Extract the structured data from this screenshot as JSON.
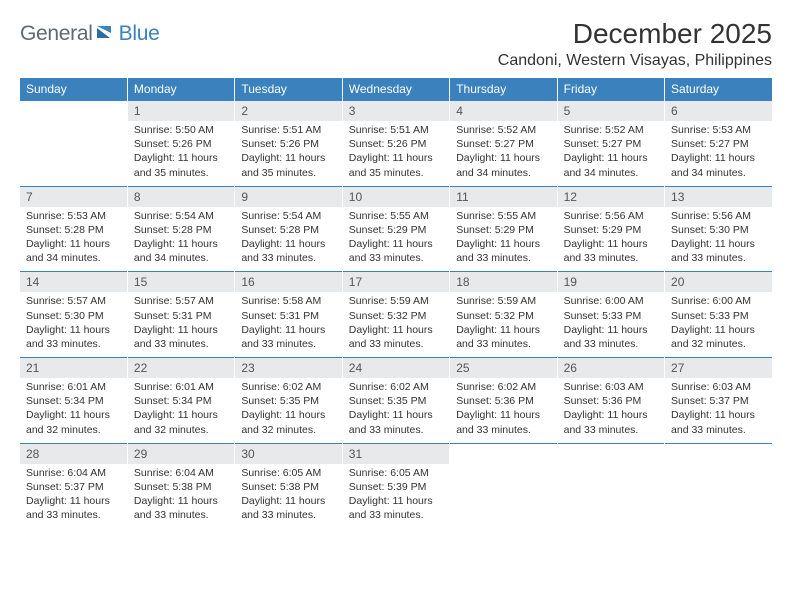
{
  "logo": {
    "general": "General",
    "blue": "Blue"
  },
  "title": "December 2025",
  "location": "Candoni, Western Visayas, Philippines",
  "colors": {
    "header_bg": "#3a81bd",
    "header_text": "#ffffff",
    "daynum_bg": "#e8e9ea",
    "daynum_text": "#555555",
    "body_text": "#333333",
    "rule": "#3a81bd",
    "logo_gray": "#5f6a72",
    "logo_blue": "#3a81bd"
  },
  "daysOfWeek": [
    "Sunday",
    "Monday",
    "Tuesday",
    "Wednesday",
    "Thursday",
    "Friday",
    "Saturday"
  ],
  "weeks": [
    [
      null,
      {
        "n": "1",
        "sr": "5:50 AM",
        "ss": "5:26 PM",
        "dl": "11 hours and 35 minutes."
      },
      {
        "n": "2",
        "sr": "5:51 AM",
        "ss": "5:26 PM",
        "dl": "11 hours and 35 minutes."
      },
      {
        "n": "3",
        "sr": "5:51 AM",
        "ss": "5:26 PM",
        "dl": "11 hours and 35 minutes."
      },
      {
        "n": "4",
        "sr": "5:52 AM",
        "ss": "5:27 PM",
        "dl": "11 hours and 34 minutes."
      },
      {
        "n": "5",
        "sr": "5:52 AM",
        "ss": "5:27 PM",
        "dl": "11 hours and 34 minutes."
      },
      {
        "n": "6",
        "sr": "5:53 AM",
        "ss": "5:27 PM",
        "dl": "11 hours and 34 minutes."
      }
    ],
    [
      {
        "n": "7",
        "sr": "5:53 AM",
        "ss": "5:28 PM",
        "dl": "11 hours and 34 minutes."
      },
      {
        "n": "8",
        "sr": "5:54 AM",
        "ss": "5:28 PM",
        "dl": "11 hours and 34 minutes."
      },
      {
        "n": "9",
        "sr": "5:54 AM",
        "ss": "5:28 PM",
        "dl": "11 hours and 33 minutes."
      },
      {
        "n": "10",
        "sr": "5:55 AM",
        "ss": "5:29 PM",
        "dl": "11 hours and 33 minutes."
      },
      {
        "n": "11",
        "sr": "5:55 AM",
        "ss": "5:29 PM",
        "dl": "11 hours and 33 minutes."
      },
      {
        "n": "12",
        "sr": "5:56 AM",
        "ss": "5:29 PM",
        "dl": "11 hours and 33 minutes."
      },
      {
        "n": "13",
        "sr": "5:56 AM",
        "ss": "5:30 PM",
        "dl": "11 hours and 33 minutes."
      }
    ],
    [
      {
        "n": "14",
        "sr": "5:57 AM",
        "ss": "5:30 PM",
        "dl": "11 hours and 33 minutes."
      },
      {
        "n": "15",
        "sr": "5:57 AM",
        "ss": "5:31 PM",
        "dl": "11 hours and 33 minutes."
      },
      {
        "n": "16",
        "sr": "5:58 AM",
        "ss": "5:31 PM",
        "dl": "11 hours and 33 minutes."
      },
      {
        "n": "17",
        "sr": "5:59 AM",
        "ss": "5:32 PM",
        "dl": "11 hours and 33 minutes."
      },
      {
        "n": "18",
        "sr": "5:59 AM",
        "ss": "5:32 PM",
        "dl": "11 hours and 33 minutes."
      },
      {
        "n": "19",
        "sr": "6:00 AM",
        "ss": "5:33 PM",
        "dl": "11 hours and 33 minutes."
      },
      {
        "n": "20",
        "sr": "6:00 AM",
        "ss": "5:33 PM",
        "dl": "11 hours and 32 minutes."
      }
    ],
    [
      {
        "n": "21",
        "sr": "6:01 AM",
        "ss": "5:34 PM",
        "dl": "11 hours and 32 minutes."
      },
      {
        "n": "22",
        "sr": "6:01 AM",
        "ss": "5:34 PM",
        "dl": "11 hours and 32 minutes."
      },
      {
        "n": "23",
        "sr": "6:02 AM",
        "ss": "5:35 PM",
        "dl": "11 hours and 32 minutes."
      },
      {
        "n": "24",
        "sr": "6:02 AM",
        "ss": "5:35 PM",
        "dl": "11 hours and 33 minutes."
      },
      {
        "n": "25",
        "sr": "6:02 AM",
        "ss": "5:36 PM",
        "dl": "11 hours and 33 minutes."
      },
      {
        "n": "26",
        "sr": "6:03 AM",
        "ss": "5:36 PM",
        "dl": "11 hours and 33 minutes."
      },
      {
        "n": "27",
        "sr": "6:03 AM",
        "ss": "5:37 PM",
        "dl": "11 hours and 33 minutes."
      }
    ],
    [
      {
        "n": "28",
        "sr": "6:04 AM",
        "ss": "5:37 PM",
        "dl": "11 hours and 33 minutes."
      },
      {
        "n": "29",
        "sr": "6:04 AM",
        "ss": "5:38 PM",
        "dl": "11 hours and 33 minutes."
      },
      {
        "n": "30",
        "sr": "6:05 AM",
        "ss": "5:38 PM",
        "dl": "11 hours and 33 minutes."
      },
      {
        "n": "31",
        "sr": "6:05 AM",
        "ss": "5:39 PM",
        "dl": "11 hours and 33 minutes."
      },
      null,
      null,
      null
    ]
  ],
  "labels": {
    "sunrise": "Sunrise:",
    "sunset": "Sunset:",
    "daylight": "Daylight:"
  }
}
